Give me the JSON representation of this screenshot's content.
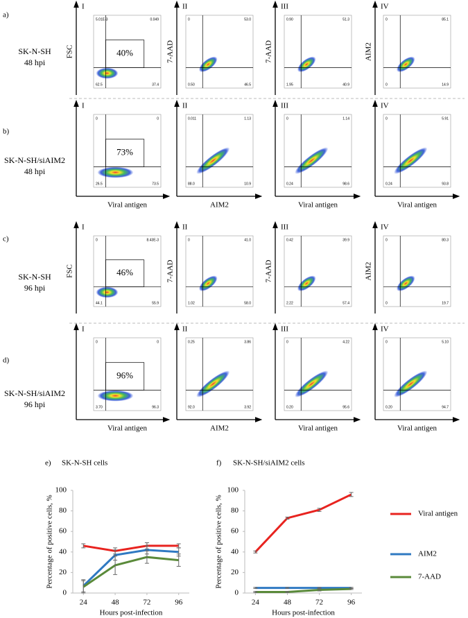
{
  "flow": {
    "rows": [
      {
        "label": "a)",
        "sample": "SK-N-SH",
        "time": "48 hpi",
        "plots": [
          {
            "numeral": "I",
            "y_label": "FSC",
            "gate": "40%",
            "quadrants": {
              "ul": "5.01E-3",
              "ur": "0.049",
              "ll": "62.5",
              "lr": "37.4"
            }
          },
          {
            "numeral": "II",
            "y_label": "7-AAD",
            "quadrants": {
              "ul": "0",
              "ur": "53.0",
              "ll": "0.50",
              "lr": "46.5"
            }
          },
          {
            "numeral": "III",
            "y_label": "7-AAD",
            "quadrants": {
              "ul": "0.90",
              "ur": "51.3",
              "ll": "1.95",
              "lr": "40.9"
            }
          },
          {
            "numeral": "IV",
            "y_label": "AIM2",
            "quadrants": {
              "ul": "0",
              "ur": "85.1",
              "ll": "0",
              "lr": "14.9"
            }
          }
        ]
      },
      {
        "label": "b)",
        "sample": "SK-N-SH/siAIM2",
        "time": "48 hpi",
        "plots": [
          {
            "numeral": "I",
            "x_label": "Viral antigen",
            "gate": "73%",
            "quadrants": {
              "ul": "0",
              "ur": "0",
              "ll": "26.5",
              "lr": "73.5"
            }
          },
          {
            "numeral": "II",
            "x_label": "AIM2",
            "quadrants": {
              "ul": "0.011",
              "ur": "1.13",
              "ll": "88.0",
              "lr": "10.9"
            }
          },
          {
            "numeral": "III",
            "x_label": "Viral antigen",
            "quadrants": {
              "ul": "0",
              "ur": "1.14",
              "ll": "0.24",
              "lr": "98.6"
            }
          },
          {
            "numeral": "IV",
            "x_label": "Viral antigen",
            "quadrants": {
              "ul": "0",
              "ur": "5.91",
              "ll": "0.24",
              "lr": "93.8"
            }
          }
        ]
      },
      {
        "label": "c)",
        "sample": "SK-N-SH",
        "time": "96 hpi",
        "plots": [
          {
            "numeral": "I",
            "y_label": "FSC",
            "gate": "46%",
            "quadrants": {
              "ul": "0",
              "ur": "8.43E-3",
              "ll": "44.1",
              "lr": "55.9"
            }
          },
          {
            "numeral": "II",
            "y_label": "7-AAD",
            "quadrants": {
              "ul": "0",
              "ur": "41.0",
              "ll": "1.02",
              "lr": "58.0"
            }
          },
          {
            "numeral": "III",
            "y_label": "7-AAD",
            "quadrants": {
              "ul": "0.42",
              "ur": "39.9",
              "ll": "2.22",
              "lr": "57.4"
            }
          },
          {
            "numeral": "IV",
            "y_label": "AIM2",
            "quadrants": {
              "ul": "0",
              "ur": "80.3",
              "ll": "0",
              "lr": "19.7"
            }
          }
        ]
      },
      {
        "label": "d)",
        "sample": "SK-N-SH/siAIM2",
        "time": "96 hpi",
        "plots": [
          {
            "numeral": "I",
            "x_label": "Viral antigen",
            "gate": "96%",
            "quadrants": {
              "ul": "0",
              "ur": "0",
              "ll": "3.70",
              "lr": "96.3"
            }
          },
          {
            "numeral": "II",
            "x_label": "AIM2",
            "quadrants": {
              "ul": "0.25",
              "ur": "3.86",
              "ll": "92.0",
              "lr": "3.92"
            }
          },
          {
            "numeral": "III",
            "x_label": "Viral antigen",
            "quadrants": {
              "ul": "0",
              "ur": "4.22",
              "ll": "0.20",
              "lr": "95.6"
            }
          },
          {
            "numeral": "IV",
            "x_label": "Viral antigen",
            "quadrants": {
              "ul": "0",
              "ur": "5.10",
              "ll": "0.20",
              "lr": "94.7"
            }
          }
        ]
      }
    ]
  },
  "chart_data": [
    {
      "type": "line",
      "label": "e)",
      "title": "SK-N-SH cells",
      "x_label": "Hours post-infection",
      "y_label": "Percentage of positive cells, %",
      "x": [
        24,
        48,
        72,
        96
      ],
      "xlim": [
        16,
        104
      ],
      "xticks": [
        24,
        48,
        72,
        96
      ],
      "ylim": [
        0,
        100
      ],
      "yticks": [
        0,
        20,
        40,
        60,
        80,
        100
      ],
      "series": [
        {
          "color": "#e8231f",
          "values": [
            46,
            41,
            46,
            46
          ],
          "errors": [
            2,
            3,
            3,
            2
          ]
        },
        {
          "color": "#2f79c2",
          "values": [
            7,
            37,
            42,
            40
          ],
          "errors": [
            6,
            5,
            4,
            4
          ]
        },
        {
          "color": "#5a8a3a",
          "values": [
            6,
            27,
            35,
            32
          ],
          "errors": [
            6,
            9,
            6,
            6
          ]
        }
      ]
    },
    {
      "type": "line",
      "label": "f)",
      "title": "SK-N-SH/siAIM2 cells",
      "x_label": "Hours post-infection",
      "y_label": "Percentage of positive cells, %",
      "x": [
        24,
        48,
        72,
        96
      ],
      "xlim": [
        16,
        104
      ],
      "xticks": [
        24,
        48,
        72,
        96
      ],
      "ylim": [
        0,
        100
      ],
      "yticks": [
        0,
        20,
        40,
        60,
        80,
        100
      ],
      "legend": "right",
      "series": [
        {
          "name": "Viral antigen",
          "color": "#e8231f",
          "values": [
            40,
            73,
            81,
            96
          ],
          "errors": [
            1,
            1,
            1.5,
            2
          ]
        },
        {
          "name": "AIM2",
          "color": "#2f79c2",
          "values": [
            5,
            5,
            5,
            5
          ],
          "errors": [
            0.5,
            0.5,
            0.5,
            0.5
          ]
        },
        {
          "name": "7-AAD",
          "color": "#5a8a3a",
          "values": [
            1,
            1,
            3,
            4
          ],
          "errors": [
            0.5,
            0.5,
            1,
            0.5
          ]
        }
      ]
    }
  ]
}
